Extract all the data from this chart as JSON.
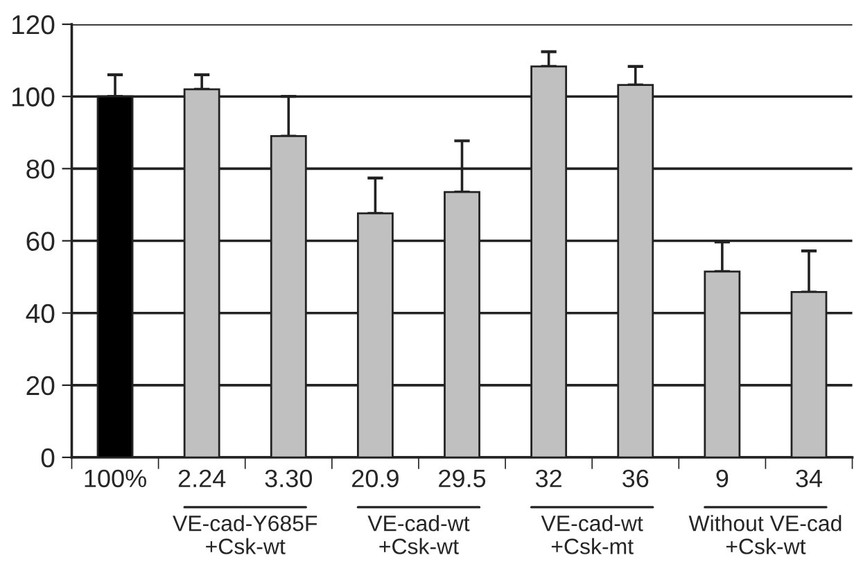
{
  "chart_data": {
    "type": "bar",
    "categories": [
      "100%",
      "2.24",
      "3.30",
      "20.9",
      "29.5",
      "32",
      "36",
      "9",
      "34"
    ],
    "values": [
      100,
      102,
      89,
      67.6,
      73.5,
      108.3,
      103.2,
      51.5,
      45.8
    ],
    "colors": [
      "#000000",
      "#c0c0c0",
      "#c0c0c0",
      "#c0c0c0",
      "#c0c0c0",
      "#c0c0c0",
      "#c0c0c0",
      "#c0c0c0",
      "#c0c0c0"
    ],
    "errors": [
      [
        100,
        106
      ],
      [
        102,
        106
      ],
      [
        89,
        100
      ],
      [
        67.6,
        77.4
      ],
      [
        73.5,
        87.7
      ],
      [
        108.3,
        112.4
      ],
      [
        103.2,
        108.3
      ],
      [
        51.5,
        59.7
      ],
      [
        45.8,
        57.2
      ]
    ],
    "ylim": [
      0,
      120
    ],
    "yticks": [
      0,
      20,
      40,
      60,
      80,
      100,
      120
    ],
    "grid": "y",
    "annotations": [
      "VE-cad-Y685F\n+Csk-wt",
      "VE-cad-wt\n+Csk-wt",
      "VE-cad-wt\n+Csk-mt",
      "Without VE-cad\n+Csk-wt"
    ]
  }
}
